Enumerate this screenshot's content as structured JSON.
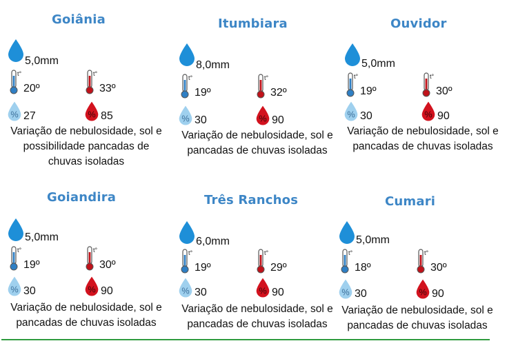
{
  "cities": [
    {
      "name": "Goiânia",
      "rain": "5,0mm",
      "tmin": "20º",
      "tmax": "33º",
      "hmin": "27",
      "hmax": "85",
      "desc": "Variação de nebulosidade, sol e possibilidade pancadas de chuvas isoladas"
    },
    {
      "name": "Itumbiara",
      "rain": "8,0mm",
      "tmin": "19º",
      "tmax": "32º",
      "hmin": "30",
      "hmax": "90",
      "desc": "Variação de nebulosidade, sol e pancadas de chuvas isoladas"
    },
    {
      "name": "Ouvidor",
      "rain": "5,0mm",
      "tmin": "19º",
      "tmax": "30º",
      "hmin": "30",
      "hmax": "90",
      "desc": "Variação de nebulosidade, sol e pancadas de chuvas isoladas"
    },
    {
      "name": "Goiandira",
      "rain": "5,0mm",
      "tmin": "19º",
      "tmax": "30º",
      "hmin": "30",
      "hmax": "90",
      "desc": "Variação de nebulosidade, sol e pancadas de chuvas isoladas"
    },
    {
      "name": "Três Ranchos",
      "rain": "6,0mm",
      "tmin": "19º",
      "tmax": "29º",
      "hmin": "30",
      "hmax": "90",
      "desc": "Variação de nebulosidade, sol e pancadas de chuvas isoladas"
    },
    {
      "name": "Cumari",
      "rain": "5,0mm",
      "tmin": "18º",
      "tmax": "30º",
      "hmin": "30",
      "hmax": "90",
      "desc": "Variação de nebulosidade, sol e pancadas de chuvas isoladas"
    }
  ],
  "icon_labels": {
    "percent": "%",
    "thermo": "t°"
  },
  "colors": {
    "city": "#3d86c6",
    "rain": "#1e8fd8",
    "cold": "#2f7fc4",
    "hot": "#c0121a",
    "humidity_light": "#9fd0ee",
    "humidity_dark": "#d2121e",
    "divider": "#2e9b3e"
  }
}
